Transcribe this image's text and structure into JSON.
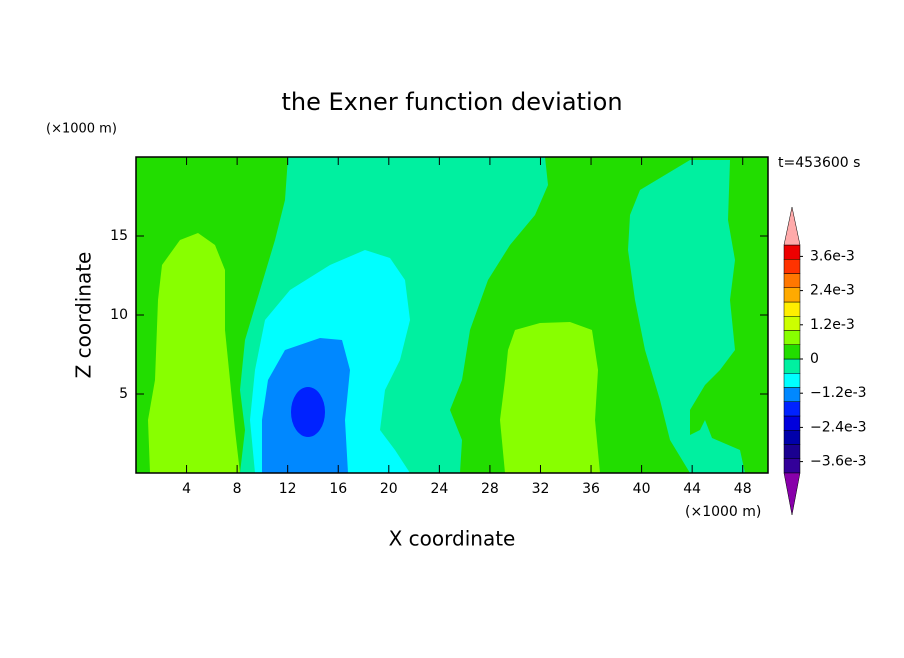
{
  "chart_data": {
    "type": "contour",
    "title": "the Exner function deviation",
    "x_label": "X coordinate",
    "y_label": "Z coordinate",
    "x_unit": "(×1000 m)",
    "y_unit": "(×1000 m)",
    "time_label": "t=453600 s",
    "xlim": [
      0,
      50
    ],
    "xticks": [
      4,
      8,
      12,
      16,
      20,
      24,
      28,
      32,
      36,
      40,
      44,
      48
    ],
    "ylim": [
      0,
      20
    ],
    "yticks": [
      5,
      10,
      15
    ],
    "levels": [
      -0.004,
      -0.0035,
      -0.003,
      -0.0025,
      -0.002,
      -0.0015,
      -0.001,
      -0.0005,
      0,
      0.0005,
      0.001,
      0.0015,
      0.002,
      0.0025,
      0.003,
      0.0035,
      0.004
    ],
    "colors": [
      "#330099",
      "#1a0090",
      "#0000aa",
      "#0000dd",
      "#0022ff",
      "#0088ff",
      "#00ffff",
      "#00f0a0",
      "#22dd00",
      "#88ff00",
      "#ccff00",
      "#ffee00",
      "#ffaa00",
      "#ff7700",
      "#ff3300",
      "#ee0000"
    ],
    "under_color": "#8800aa",
    "over_color": "#ffaaaa",
    "colorbar_ticks": [
      {
        "value": 0.0036,
        "label": "3.6e-3"
      },
      {
        "value": 0.0024,
        "label": "2.4e-3"
      },
      {
        "value": 0.0012,
        "label": "1.2e-3"
      },
      0,
      {
        "value": -0.0012,
        "label": "−1.2e-3"
      },
      {
        "value": -0.0024,
        "label": "−2.4e-3"
      },
      {
        "value": -0.0036,
        "label": "−3.6e-3"
      }
    ]
  }
}
